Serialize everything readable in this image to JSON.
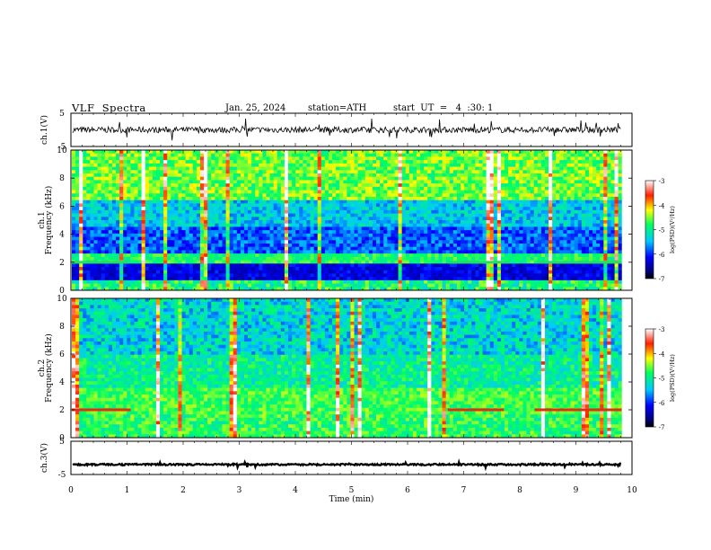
{
  "header": {
    "title": "VLF  Spectra",
    "date": "Jan. 25, 2024",
    "station": "station=ATH",
    "start": "start  UT  =   4  :30: 1"
  },
  "chart_data": [
    {
      "type": "line",
      "panel": "ch1-waveform",
      "ylabel": "ch.1(V)",
      "ylim": [
        -5,
        5
      ],
      "yticks": [
        "5",
        "-5"
      ],
      "xlim": [
        0,
        10
      ],
      "baseline": 0,
      "data_end_min": 9.8,
      "note": "noisy waveform around 0 V"
    },
    {
      "type": "heatmap",
      "panel": "ch1-spectrogram",
      "ylabel": "ch.1\nFrequency (kHz)",
      "ylim": [
        0,
        10
      ],
      "yticks": [
        "10",
        "8",
        "6",
        "4",
        "2",
        "0"
      ],
      "xlim": [
        0,
        10
      ],
      "colorbar": {
        "label": "log(PSD)(V²/Hz)",
        "range": [
          -7,
          -3
        ],
        "ticks": [
          "-3",
          "-4",
          "-5",
          "-6",
          "-7"
        ]
      }
    },
    {
      "type": "heatmap",
      "panel": "ch2-spectrogram",
      "ylabel": "ch.2\nFrequency (kHz)",
      "ylim": [
        0,
        10
      ],
      "yticks": [
        "10",
        "8",
        "6",
        "4",
        "2",
        "0"
      ],
      "xlim": [
        0,
        10
      ],
      "colorbar": {
        "label": "log(PSD)(V²/Hz)",
        "range": [
          -7,
          -3
        ],
        "ticks": [
          "-3",
          "-4",
          "-5",
          "-6",
          "-7"
        ]
      }
    },
    {
      "type": "line",
      "panel": "ch3-waveform",
      "ylabel": "ch.3(V)",
      "ylim": [
        -5,
        5
      ],
      "yticks": [
        "5",
        "-5"
      ],
      "xlim": [
        0,
        10
      ],
      "baseline": -2,
      "data_end_min": 9.8,
      "xlabel": "Time  (min)",
      "xticks": [
        "0",
        "1",
        "2",
        "3",
        "4",
        "5",
        "6",
        "7",
        "8",
        "9",
        "10"
      ]
    }
  ]
}
